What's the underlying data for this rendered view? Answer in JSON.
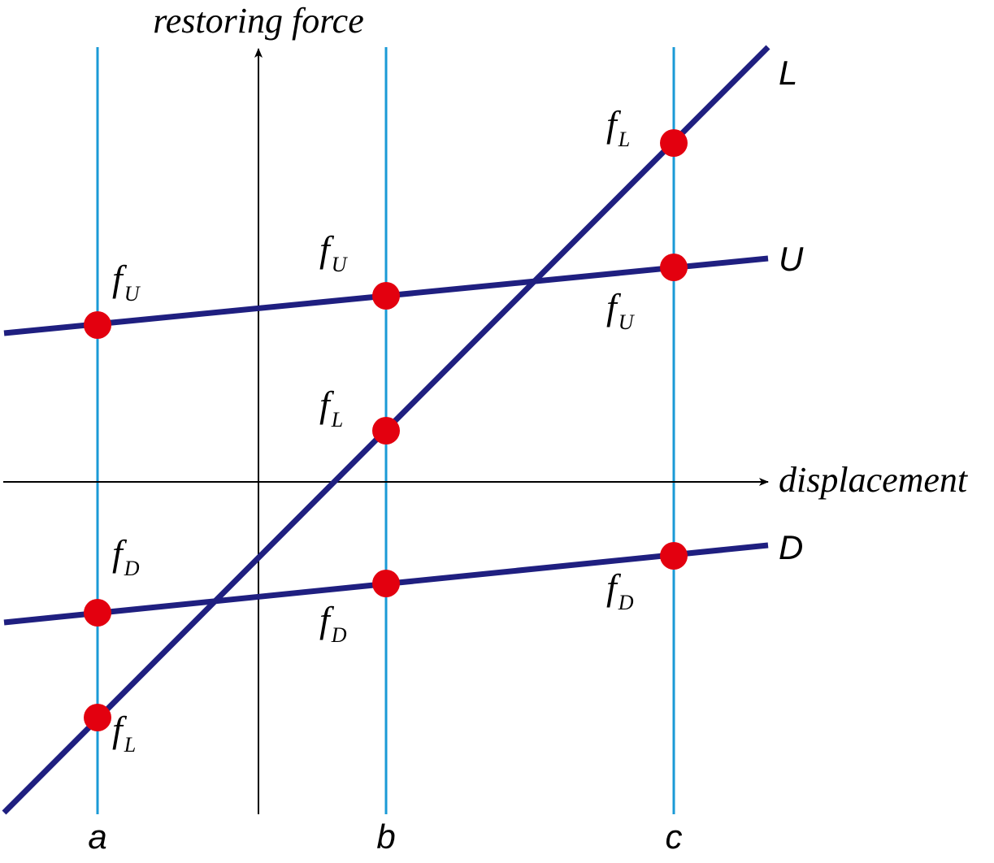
{
  "axes": {
    "y_label": "restoring force",
    "x_label": "displacement"
  },
  "lines": [
    {
      "label": "L"
    },
    {
      "label": "U"
    },
    {
      "label": "D"
    }
  ],
  "columns": [
    {
      "label": "a"
    },
    {
      "label": "b"
    },
    {
      "label": "c"
    }
  ],
  "points": [
    {
      "symbol": "f",
      "subscript": "U"
    },
    {
      "symbol": "f",
      "subscript": "D"
    },
    {
      "symbol": "f",
      "subscript": "L"
    },
    {
      "symbol": "f",
      "subscript": "U"
    },
    {
      "symbol": "f",
      "subscript": "L"
    },
    {
      "symbol": "f",
      "subscript": "D"
    },
    {
      "symbol": "f",
      "subscript": "L"
    },
    {
      "symbol": "f",
      "subscript": "U"
    },
    {
      "symbol": "f",
      "subscript": "D"
    }
  ]
}
